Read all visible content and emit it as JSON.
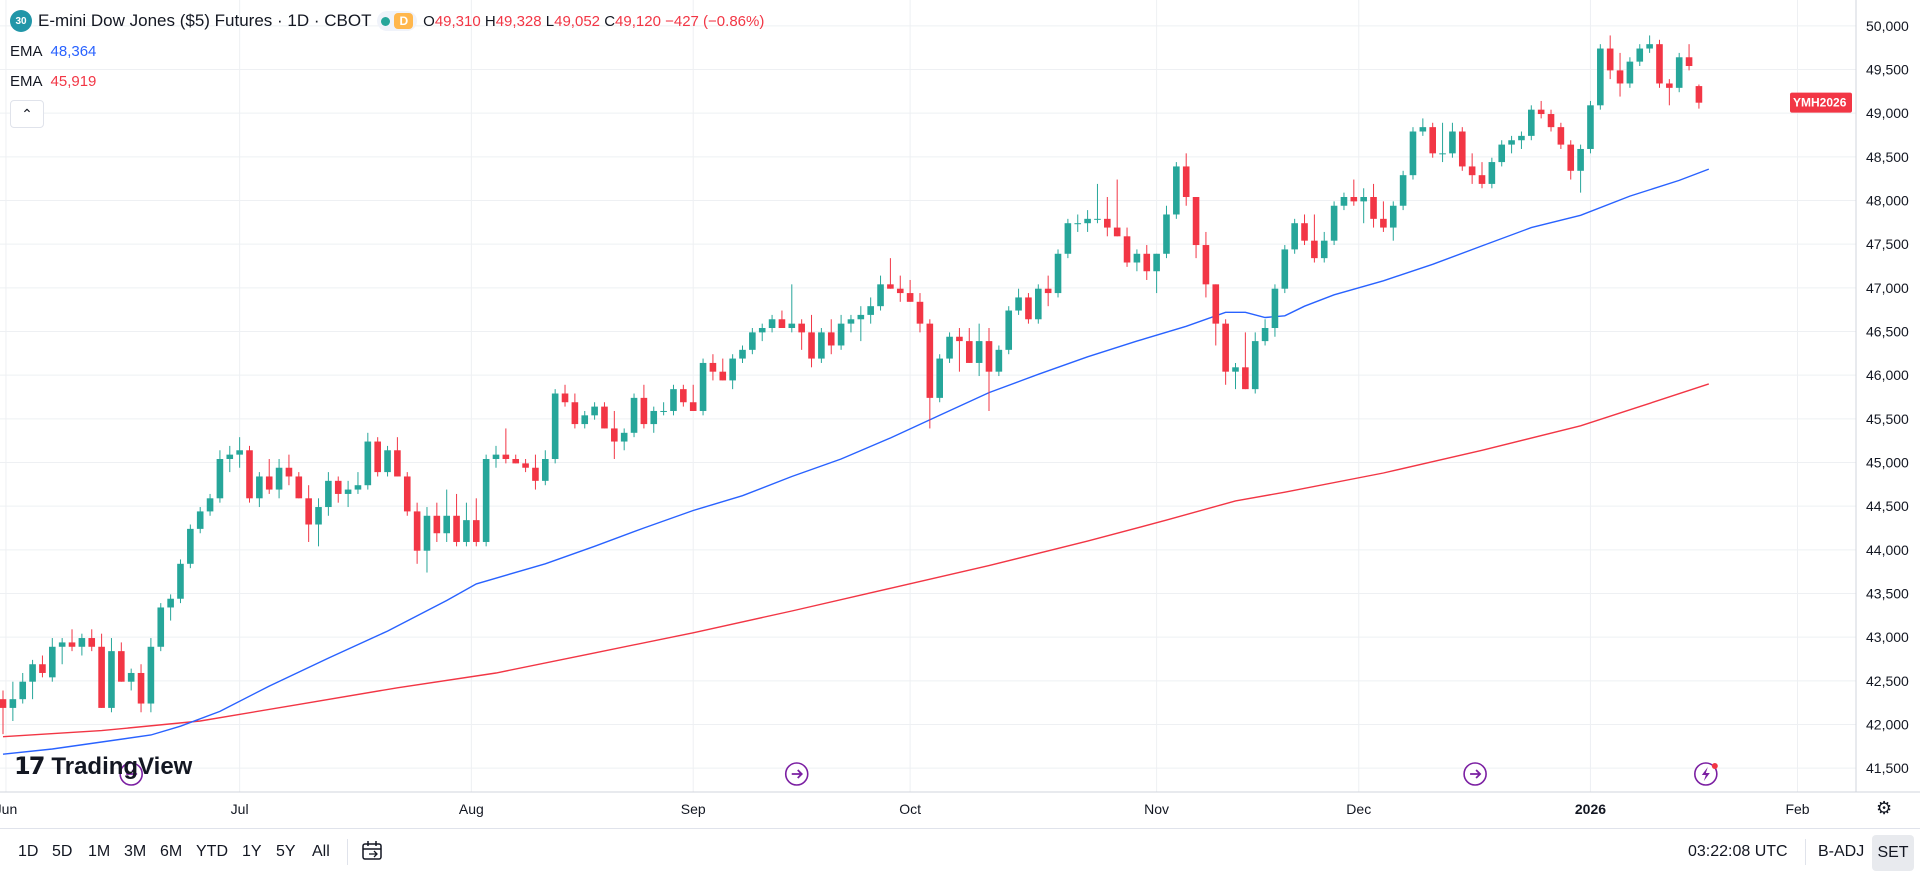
{
  "header": {
    "symbol_icon_text": "30",
    "title": "E-mini Dow Jones ($5) Futures · 1D · CBOT",
    "status_badge": "D",
    "ohlc": {
      "o_label": "O",
      "o": "49,310",
      "h_label": "H",
      "h": "49,328",
      "l_label": "L",
      "l": "49,052",
      "c_label": "C",
      "c": "49,120",
      "change": "−427 (−0.86%)"
    }
  },
  "indicators": [
    {
      "label": "EMA",
      "value": "48,364",
      "color": "#2962ff"
    },
    {
      "label": "EMA",
      "value": "45,919",
      "color": "#f23645"
    }
  ],
  "price_tag": "YMH2026",
  "logo_text": "TradingView",
  "timeframes": [
    "1D",
    "5D",
    "1M",
    "3M",
    "6M",
    "YTD",
    "1Y",
    "5Y",
    "All"
  ],
  "clock": "03:22:08 UTC",
  "adjustment": "B-ADJ",
  "session": "SET",
  "colors": {
    "up": "#26a69a",
    "down": "#f23645",
    "ema_fast": "#2962ff",
    "ema_slow": "#f23645",
    "grid": "#eef0f3"
  },
  "chart_data": {
    "type": "candlestick",
    "ylim": [
      41250,
      50250
    ],
    "y_ticks": [
      41500,
      42000,
      42500,
      43000,
      43500,
      44000,
      44500,
      45000,
      45500,
      46000,
      46500,
      47000,
      47500,
      48000,
      48500,
      49000,
      49500,
      50000
    ],
    "y_tick_labels": [
      "41,500",
      "42,000",
      "42,500",
      "43,000",
      "43,500",
      "44,000",
      "44,500",
      "45,000",
      "45,500",
      "46,000",
      "46,500",
      "47,000",
      "47,500",
      "48,000",
      "48,500",
      "49,000",
      "49,500",
      "50,000"
    ],
    "x_labels": [
      {
        "label": "Jun",
        "bar": 0.3
      },
      {
        "label": "Jul",
        "bar": 24
      },
      {
        "label": "Aug",
        "bar": 47.5
      },
      {
        "label": "Sep",
        "bar": 70
      },
      {
        "label": "Oct",
        "bar": 92
      },
      {
        "label": "Nov",
        "bar": 117
      },
      {
        "label": "Dec",
        "bar": 137.5
      },
      {
        "label": "2026",
        "bar": 161
      },
      {
        "label": "Feb",
        "bar": 182
      }
    ],
    "events": [
      {
        "bar": 13
      },
      {
        "bar": 80.5
      },
      {
        "bar": 149.3
      },
      {
        "bar": 172.7,
        "type": "flash"
      }
    ],
    "candles": [
      [
        42290,
        42390,
        41890,
        42190
      ],
      [
        42190,
        42490,
        42040,
        42290
      ],
      [
        42290,
        42590,
        42240,
        42490
      ],
      [
        42490,
        42740,
        42290,
        42690
      ],
      [
        42690,
        42790,
        42540,
        42590
      ],
      [
        42540,
        42990,
        42490,
        42890
      ],
      [
        42890,
        42990,
        42690,
        42940
      ],
      [
        42940,
        43090,
        42840,
        42890
      ],
      [
        42890,
        43040,
        42790,
        42990
      ],
      [
        42990,
        43090,
        42840,
        42890
      ],
      [
        42890,
        43040,
        42190,
        42190
      ],
      [
        42190,
        42990,
        42140,
        42840
      ],
      [
        42840,
        42940,
        42490,
        42490
      ],
      [
        42490,
        42640,
        42390,
        42590
      ],
      [
        42590,
        42690,
        42140,
        42240
      ],
      [
        42240,
        42990,
        42140,
        42890
      ],
      [
        42890,
        43390,
        42840,
        43340
      ],
      [
        43340,
        43490,
        43190,
        43440
      ],
      [
        43440,
        43890,
        43390,
        43840
      ],
      [
        43840,
        44290,
        43790,
        44240
      ],
      [
        44240,
        44490,
        44190,
        44440
      ],
      [
        44440,
        44640,
        44390,
        44590
      ],
      [
        44590,
        45140,
        44540,
        45040
      ],
      [
        45040,
        45190,
        44890,
        45090
      ],
      [
        45090,
        45290,
        44940,
        45140
      ],
      [
        45140,
        45190,
        44540,
        44590
      ],
      [
        44590,
        44890,
        44490,
        44840
      ],
      [
        44840,
        45040,
        44640,
        44690
      ],
      [
        44690,
        45040,
        44590,
        44940
      ],
      [
        44940,
        45090,
        44740,
        44840
      ],
      [
        44840,
        44890,
        44590,
        44590
      ],
      [
        44590,
        44740,
        44090,
        44290
      ],
      [
        44290,
        44590,
        44040,
        44490
      ],
      [
        44490,
        44890,
        44390,
        44790
      ],
      [
        44790,
        44840,
        44540,
        44640
      ],
      [
        44640,
        44790,
        44490,
        44690
      ],
      [
        44690,
        44890,
        44640,
        44740
      ],
      [
        44740,
        45340,
        44690,
        45240
      ],
      [
        45240,
        45290,
        44840,
        44890
      ],
      [
        44890,
        45190,
        44840,
        45140
      ],
      [
        45140,
        45290,
        44840,
        44840
      ],
      [
        44840,
        44890,
        44390,
        44440
      ],
      [
        44440,
        44540,
        43840,
        43990
      ],
      [
        43990,
        44490,
        43740,
        44390
      ],
      [
        44390,
        44540,
        44090,
        44190
      ],
      [
        44190,
        44690,
        44090,
        44390
      ],
      [
        44390,
        44640,
        44040,
        44090
      ],
      [
        44090,
        44540,
        44040,
        44340
      ],
      [
        44340,
        44590,
        44040,
        44090
      ],
      [
        44090,
        45090,
        44040,
        45040
      ],
      [
        45040,
        45190,
        44940,
        45090
      ],
      [
        45090,
        45390,
        44990,
        45040
      ],
      [
        45040,
        45090,
        44990,
        44990
      ],
      [
        44990,
        45040,
        44890,
        44940
      ],
      [
        44940,
        45090,
        44690,
        44790
      ],
      [
        44790,
        45140,
        44740,
        45040
      ],
      [
        45040,
        45840,
        44990,
        45790
      ],
      [
        45790,
        45890,
        45640,
        45690
      ],
      [
        45690,
        45790,
        45390,
        45440
      ],
      [
        45440,
        45590,
        45390,
        45540
      ],
      [
        45540,
        45690,
        45490,
        45640
      ],
      [
        45640,
        45690,
        45390,
        45390
      ],
      [
        45390,
        45590,
        45040,
        45240
      ],
      [
        45240,
        45390,
        45140,
        45340
      ],
      [
        45340,
        45790,
        45290,
        45740
      ],
      [
        45740,
        45890,
        45390,
        45440
      ],
      [
        45440,
        45640,
        45340,
        45590
      ],
      [
        45590,
        45690,
        45540,
        45590
      ],
      [
        45590,
        45890,
        45540,
        45840
      ],
      [
        45840,
        45890,
        45640,
        45690
      ],
      [
        45690,
        45890,
        45590,
        45590
      ],
      [
        45590,
        46190,
        45540,
        46140
      ],
      [
        46140,
        46240,
        45940,
        46040
      ],
      [
        46040,
        46190,
        45940,
        45940
      ],
      [
        45940,
        46240,
        45840,
        46190
      ],
      [
        46190,
        46340,
        46140,
        46290
      ],
      [
        46290,
        46540,
        46240,
        46490
      ],
      [
        46490,
        46590,
        46390,
        46540
      ],
      [
        46540,
        46690,
        46490,
        46640
      ],
      [
        46640,
        46740,
        46540,
        46540
      ],
      [
        46540,
        47040,
        46490,
        46590
      ],
      [
        46590,
        46640,
        46290,
        46490
      ],
      [
        46490,
        46690,
        46090,
        46190
      ],
      [
        46190,
        46540,
        46140,
        46490
      ],
      [
        46490,
        46640,
        46240,
        46340
      ],
      [
        46340,
        46690,
        46290,
        46590
      ],
      [
        46590,
        46690,
        46490,
        46640
      ],
      [
        46640,
        46790,
        46390,
        46690
      ],
      [
        46690,
        46890,
        46590,
        46790
      ],
      [
        46790,
        47140,
        46740,
        47040
      ],
      [
        47040,
        47340,
        46990,
        46990
      ],
      [
        46990,
        47140,
        46840,
        46940
      ],
      [
        46940,
        47090,
        46840,
        46840
      ],
      [
        46840,
        46940,
        46490,
        46590
      ],
      [
        46590,
        46640,
        45390,
        45740
      ],
      [
        45740,
        46240,
        45690,
        46190
      ],
      [
        46190,
        46490,
        46140,
        46440
      ],
      [
        46440,
        46540,
        46040,
        46390
      ],
      [
        46390,
        46540,
        46140,
        46140
      ],
      [
        46140,
        46590,
        45990,
        46390
      ],
      [
        46390,
        46540,
        45590,
        46040
      ],
      [
        46040,
        46340,
        45990,
        46290
      ],
      [
        46290,
        46790,
        46240,
        46740
      ],
      [
        46740,
        46990,
        46690,
        46890
      ],
      [
        46890,
        46940,
        46590,
        46640
      ],
      [
        46640,
        47040,
        46590,
        46990
      ],
      [
        46990,
        47140,
        46790,
        46940
      ],
      [
        46940,
        47440,
        46890,
        47390
      ],
      [
        47390,
        47790,
        47340,
        47740
      ],
      [
        47740,
        47840,
        47640,
        47740
      ],
      [
        47740,
        47890,
        47640,
        47790
      ],
      [
        47790,
        48190,
        47740,
        47790
      ],
      [
        47790,
        48040,
        47590,
        47690
      ],
      [
        47690,
        48240,
        47590,
        47590
      ],
      [
        47590,
        47690,
        47240,
        47290
      ],
      [
        47290,
        47440,
        47190,
        47390
      ],
      [
        47390,
        47490,
        47090,
        47190
      ],
      [
        47190,
        47390,
        46940,
        47390
      ],
      [
        47390,
        47940,
        47340,
        47840
      ],
      [
        47840,
        48440,
        47790,
        48390
      ],
      [
        48390,
        48540,
        47940,
        48040
      ],
      [
        48040,
        48040,
        47340,
        47490
      ],
      [
        47490,
        47640,
        46890,
        47040
      ],
      [
        47040,
        47040,
        46340,
        46590
      ],
      [
        46590,
        46640,
        45890,
        46040
      ],
      [
        46040,
        46140,
        45840,
        46090
      ],
      [
        46090,
        46490,
        45840,
        45840
      ],
      [
        45840,
        46490,
        45790,
        46390
      ],
      [
        46390,
        46640,
        46340,
        46540
      ],
      [
        46540,
        47040,
        46440,
        46990
      ],
      [
        46990,
        47490,
        46940,
        47440
      ],
      [
        47440,
        47790,
        47390,
        47740
      ],
      [
        47740,
        47840,
        47490,
        47540
      ],
      [
        47540,
        47840,
        47290,
        47340
      ],
      [
        47340,
        47640,
        47290,
        47540
      ],
      [
        47540,
        47990,
        47490,
        47940
      ],
      [
        47940,
        48090,
        47890,
        48040
      ],
      [
        48040,
        48240,
        47940,
        47990
      ],
      [
        47990,
        48140,
        47740,
        48040
      ],
      [
        48040,
        48190,
        47690,
        47790
      ],
      [
        47790,
        47990,
        47640,
        47690
      ],
      [
        47690,
        47990,
        47540,
        47940
      ],
      [
        47940,
        48340,
        47890,
        48290
      ],
      [
        48290,
        48840,
        48240,
        48790
      ],
      [
        48790,
        48940,
        48740,
        48840
      ],
      [
        48840,
        48890,
        48490,
        48540
      ],
      [
        48540,
        48890,
        48440,
        48540
      ],
      [
        48540,
        48890,
        48490,
        48790
      ],
      [
        48790,
        48840,
        48340,
        48390
      ],
      [
        48390,
        48540,
        48190,
        48290
      ],
      [
        48290,
        48440,
        48140,
        48190
      ],
      [
        48190,
        48490,
        48140,
        48440
      ],
      [
        48440,
        48690,
        48390,
        48640
      ],
      [
        48640,
        48740,
        48540,
        48690
      ],
      [
        48690,
        48790,
        48590,
        48740
      ],
      [
        48740,
        49090,
        48690,
        49040
      ],
      [
        49040,
        49140,
        48940,
        48990
      ],
      [
        48990,
        49040,
        48790,
        48840
      ],
      [
        48840,
        48890,
        48590,
        48640
      ],
      [
        48640,
        48690,
        48240,
        48340
      ],
      [
        48340,
        48640,
        48090,
        48590
      ],
      [
        48590,
        49140,
        48540,
        49090
      ],
      [
        49090,
        49790,
        49040,
        49740
      ],
      [
        49740,
        49890,
        49390,
        49490
      ],
      [
        49490,
        49690,
        49190,
        49340
      ],
      [
        49340,
        49640,
        49290,
        49590
      ],
      [
        49590,
        49790,
        49540,
        49740
      ],
      [
        49740,
        49890,
        49690,
        49790
      ],
      [
        49790,
        49840,
        49290,
        49340
      ],
      [
        49340,
        49390,
        49090,
        49290
      ],
      [
        49290,
        49690,
        49240,
        49640
      ],
      [
        49640,
        49790,
        49490,
        49540
      ],
      [
        49310,
        49328,
        49052,
        49120
      ]
    ],
    "ema_fast": [
      [
        0,
        41660
      ],
      [
        5,
        41720
      ],
      [
        10,
        41800
      ],
      [
        15,
        41880
      ],
      [
        18,
        41980
      ],
      [
        22,
        42150
      ],
      [
        27,
        42440
      ],
      [
        33,
        42760
      ],
      [
        39,
        43070
      ],
      [
        45,
        43420
      ],
      [
        48,
        43610
      ],
      [
        55,
        43840
      ],
      [
        60,
        44040
      ],
      [
        65,
        44250
      ],
      [
        70,
        44450
      ],
      [
        75,
        44620
      ],
      [
        80,
        44840
      ],
      [
        85,
        45040
      ],
      [
        90,
        45280
      ],
      [
        95,
        45540
      ],
      [
        100,
        45800
      ],
      [
        105,
        46010
      ],
      [
        110,
        46210
      ],
      [
        115,
        46390
      ],
      [
        120,
        46560
      ],
      [
        124,
        46720
      ],
      [
        126,
        46720
      ],
      [
        128,
        46660
      ],
      [
        130,
        46680
      ],
      [
        132,
        46790
      ],
      [
        135,
        46920
      ],
      [
        140,
        47080
      ],
      [
        145,
        47270
      ],
      [
        150,
        47480
      ],
      [
        155,
        47690
      ],
      [
        160,
        47830
      ],
      [
        165,
        48050
      ],
      [
        170,
        48230
      ],
      [
        173,
        48360
      ]
    ],
    "ema_slow": [
      [
        0,
        41860
      ],
      [
        10,
        41930
      ],
      [
        20,
        42040
      ],
      [
        30,
        42230
      ],
      [
        40,
        42420
      ],
      [
        50,
        42590
      ],
      [
        60,
        42820
      ],
      [
        70,
        43050
      ],
      [
        80,
        43300
      ],
      [
        90,
        43560
      ],
      [
        100,
        43820
      ],
      [
        110,
        44100
      ],
      [
        118,
        44340
      ],
      [
        125,
        44560
      ],
      [
        130,
        44660
      ],
      [
        140,
        44880
      ],
      [
        150,
        45140
      ],
      [
        160,
        45420
      ],
      [
        166,
        45640
      ],
      [
        173,
        45900
      ]
    ]
  }
}
